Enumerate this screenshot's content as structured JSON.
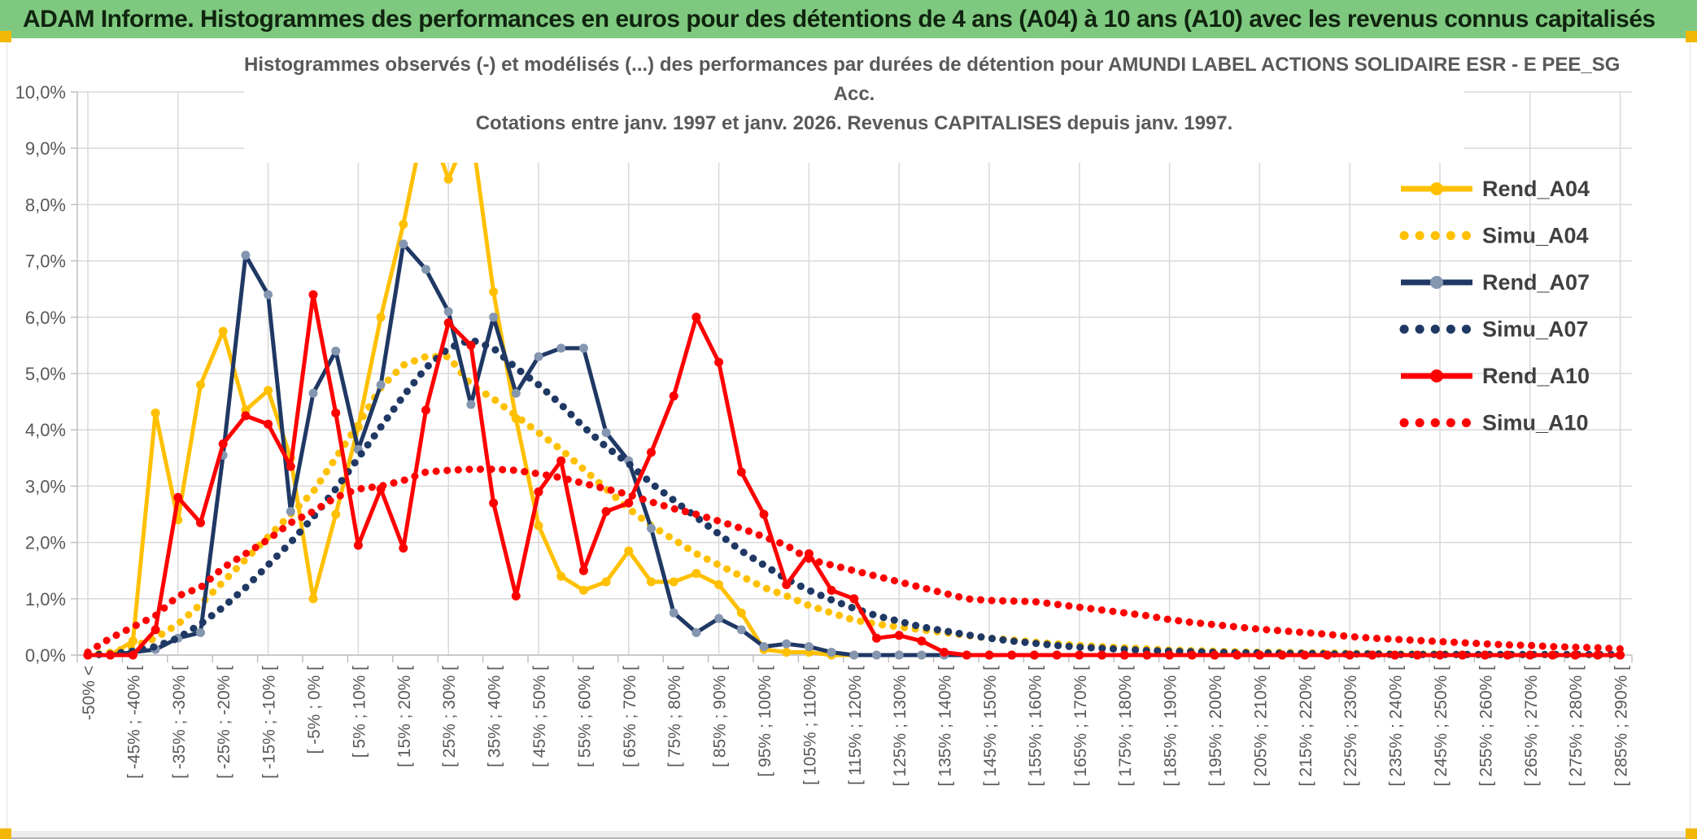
{
  "banner": {
    "text": "ADAM Informe. Histogrammes des performances en euros pour des détentions de 4 ans (A04) à 10 ans (A10) avec les revenus connus capitalisés",
    "bg_color": "#7EC97F",
    "text_color": "#10240F"
  },
  "title": {
    "line1": "Histogrammes observés (-) et modélisés (...) des performances par durées de détention pour AMUNDI LABEL ACTIONS SOLIDAIRE ESR - E PEE_SG",
    "line2": "Acc.",
    "line3": "Cotations entre janv. 1997 et janv. 2026. Revenus CAPITALISES depuis janv. 1997."
  },
  "colors": {
    "gold": "#FFC000",
    "navy": "#1F3864",
    "navy_marker": "#8496B0",
    "red": "#FF0000",
    "gridline": "#D9D9D9",
    "axis": "#BFBFBF",
    "axis_text": "#595959",
    "legend_text": "#404040",
    "corner_accent": "#F2B705",
    "footer_bg": "#ECECEC"
  },
  "chart_data": {
    "type": "line",
    "title": "Histogrammes observés (-) et modélisés (...) des performances par durées de détention pour AMUNDI LABEL ACTIONS SOLIDAIRE ESR - E PEE_SG Acc. Cotations entre janv. 1997 et janv. 2026. Revenus CAPITALISES depuis janv. 1997.",
    "xlabel": "",
    "ylabel": "",
    "ylim": [
      0,
      10
    ],
    "grid": true,
    "legend_position": "right-inside",
    "ytick_labels": [
      "0,0%",
      "1,0%",
      "2,0%",
      "3,0%",
      "4,0%",
      "5,0%",
      "6,0%",
      "7,0%",
      "8,0%",
      "9,0%",
      "10,0%"
    ],
    "bins_total": 69,
    "tick_label_every": 2,
    "tick_labels": [
      "-50% <",
      "[ -45% ; -40% [",
      "[ -35% ; -30% [",
      "[ -25% ; -20% [",
      "[ -15% ; -10% [",
      "[ -5% ; 0% [",
      "[ 5% ; 10% [",
      "[ 15% ; 20% [",
      "[ 25% ; 30% [",
      "[ 35% ; 40% [",
      "[ 45% ; 50% [",
      "[ 55% ; 60% [",
      "[ 65% ; 70% [",
      "[ 75% ; 80% [",
      "[ 85% ; 90% [",
      "[ 95% ; 100% [",
      "[ 105% ; 110% [",
      "[ 115% ; 120% [",
      "[ 125% ; 130% [",
      "[ 135% ; 140% [",
      "[ 145% ; 150% [",
      "[ 155% ; 160% [",
      "[ 165% ; 170% [",
      "[ 175% ; 180% [",
      "[ 185% ; 190% [",
      "[ 195% ; 200% [",
      "[ 205% ; 210% [",
      "[ 215% ; 220% [",
      "[ 225% ; 230% [",
      "[ 235% ; 240% [",
      "[ 245% ; 250% [",
      "[ 255% ; 260% [",
      "[ 265% ; 270% [",
      "[ 275% ; 280% [",
      "[ 285% ; 290% ["
    ],
    "series": [
      {
        "name": "Rend_A04",
        "style": "solid",
        "color": "#FFC000",
        "marker_color": "#FFC000",
        "values": [
          0,
          0,
          0.25,
          4.3,
          2.4,
          4.8,
          5.75,
          4.35,
          4.7,
          3.5,
          1.0,
          2.5,
          4.05,
          6.0,
          7.65,
          9.6,
          8.45,
          9.4,
          6.45,
          4.2,
          2.3,
          1.4,
          1.15,
          1.3,
          1.85,
          1.3,
          1.3,
          1.45,
          1.25,
          0.75,
          0.1,
          0.05,
          0.05,
          0,
          0,
          0,
          0,
          0,
          0,
          0,
          0,
          0,
          0,
          0,
          0,
          0,
          0,
          0,
          0,
          0,
          0,
          0,
          0,
          0,
          0,
          0,
          0,
          0,
          0,
          0,
          0,
          0,
          0,
          0,
          0,
          0,
          0,
          0,
          0
        ]
      },
      {
        "name": "Simu_A04",
        "style": "dotted",
        "color": "#FFC000",
        "values": [
          0,
          0.05,
          0.15,
          0.3,
          0.55,
          0.9,
          1.3,
          1.7,
          2.1,
          2.5,
          2.9,
          3.5,
          4.1,
          4.75,
          5.15,
          5.3,
          5.3,
          4.8,
          4.55,
          4.25,
          3.95,
          3.65,
          3.3,
          2.95,
          2.6,
          2.3,
          2.05,
          1.8,
          1.6,
          1.4,
          1.2,
          1.05,
          0.88,
          0.75,
          0.62,
          0.55,
          0.5,
          0.45,
          0.4,
          0.35,
          0.3,
          0.27,
          0.23,
          0.2,
          0.17,
          0.15,
          0.13,
          0.11,
          0.09,
          0.08,
          0.07,
          0.06,
          0.05,
          0.05,
          0.04,
          0.04,
          0.03,
          0.03,
          0.02,
          0.02,
          0.02,
          0.01,
          0.01,
          0.01,
          0.01,
          0.01,
          0.01,
          0.01,
          0.01
        ]
      },
      {
        "name": "Rend_A07",
        "style": "solid",
        "color": "#1F3864",
        "marker_color": "#8496B0",
        "values": [
          0,
          0,
          0.05,
          0.1,
          0.3,
          0.4,
          3.55,
          7.1,
          6.4,
          2.55,
          4.65,
          5.4,
          3.65,
          4.8,
          7.3,
          6.85,
          6.1,
          4.45,
          6.0,
          4.65,
          5.3,
          5.45,
          5.45,
          3.95,
          3.45,
          2.25,
          0.75,
          0.4,
          0.65,
          0.45,
          0.15,
          0.2,
          0.15,
          0.05,
          0,
          0,
          0,
          0,
          0,
          0,
          0,
          0,
          0,
          0,
          0,
          0,
          0,
          0,
          0,
          0,
          0,
          0,
          0,
          0,
          0,
          0,
          0,
          0,
          0,
          0,
          0,
          0,
          0,
          0,
          0,
          0,
          0,
          0,
          0
        ]
      },
      {
        "name": "Simu_A07",
        "style": "dotted",
        "color": "#1F3864",
        "values": [
          0,
          0.02,
          0.07,
          0.15,
          0.3,
          0.55,
          0.85,
          1.2,
          1.6,
          2.0,
          2.45,
          2.95,
          3.5,
          4.05,
          4.6,
          5.1,
          5.45,
          5.6,
          5.45,
          5.1,
          4.8,
          4.45,
          4.05,
          3.7,
          3.4,
          3.05,
          2.75,
          2.45,
          2.15,
          1.85,
          1.6,
          1.35,
          1.15,
          0.98,
          0.83,
          0.7,
          0.6,
          0.5,
          0.43,
          0.36,
          0.3,
          0.25,
          0.21,
          0.17,
          0.14,
          0.12,
          0.1,
          0.08,
          0.07,
          0.06,
          0.05,
          0.04,
          0.04,
          0.03,
          0.03,
          0.02,
          0.02,
          0.02,
          0.01,
          0.01,
          0.01,
          0.01,
          0.01,
          0.01,
          0.01,
          0.01,
          0.01,
          0.01,
          0.01
        ]
      },
      {
        "name": "Rend_A10",
        "style": "solid",
        "color": "#FF0000",
        "marker_color": "#FF0000",
        "values": [
          0,
          0,
          0,
          0.45,
          2.8,
          2.35,
          3.75,
          4.25,
          4.1,
          3.35,
          6.4,
          4.3,
          1.95,
          2.95,
          1.9,
          4.35,
          5.9,
          5.5,
          2.7,
          1.05,
          2.9,
          3.45,
          1.5,
          2.55,
          2.7,
          3.6,
          4.6,
          6.0,
          5.2,
          3.25,
          2.5,
          1.25,
          1.8,
          1.15,
          1.0,
          0.3,
          0.35,
          0.25,
          0.05,
          0,
          0,
          0,
          0,
          0,
          0,
          0,
          0,
          0,
          0,
          0,
          0,
          0,
          0,
          0,
          0,
          0,
          0,
          0,
          0,
          0,
          0,
          0,
          0,
          0,
          0,
          0,
          0,
          0,
          0
        ]
      },
      {
        "name": "Simu_A10",
        "style": "dotted",
        "color": "#FF0000",
        "values": [
          0.05,
          0.3,
          0.5,
          0.7,
          1.05,
          1.2,
          1.55,
          1.8,
          2.05,
          2.35,
          2.55,
          2.8,
          2.95,
          3.0,
          3.1,
          3.25,
          3.28,
          3.3,
          3.3,
          3.28,
          3.22,
          3.15,
          3.05,
          2.95,
          2.85,
          2.72,
          2.6,
          2.5,
          2.38,
          2.25,
          2.1,
          1.95,
          1.7,
          1.6,
          1.5,
          1.4,
          1.3,
          1.2,
          1.1,
          1.0,
          0.97,
          0.96,
          0.95,
          0.9,
          0.85,
          0.8,
          0.75,
          0.7,
          0.63,
          0.58,
          0.54,
          0.5,
          0.46,
          0.43,
          0.4,
          0.37,
          0.33,
          0.3,
          0.28,
          0.26,
          0.24,
          0.22,
          0.2,
          0.18,
          0.17,
          0.15,
          0.14,
          0.13,
          0.11
        ]
      }
    ]
  }
}
